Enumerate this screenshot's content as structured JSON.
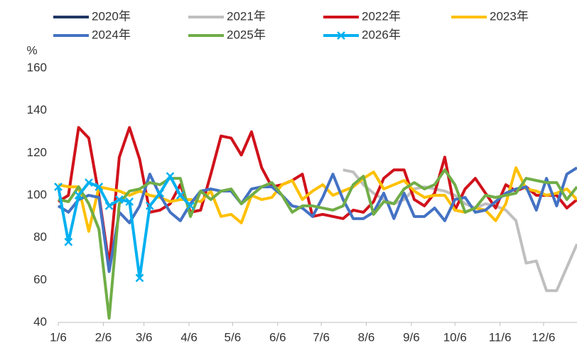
{
  "chart_data": {
    "type": "line",
    "ylabel": "%",
    "x": [
      0,
      7,
      14,
      21,
      28,
      35,
      42,
      49,
      56,
      63,
      70,
      77,
      84,
      91,
      98,
      105,
      112,
      119,
      126,
      133,
      140,
      147,
      154,
      161,
      168,
      175,
      182,
      189,
      196,
      203,
      210,
      217,
      224,
      231,
      238,
      245,
      252,
      259,
      266,
      273,
      280,
      287,
      294,
      301,
      308,
      315,
      322,
      329,
      336,
      343,
      350,
      357
    ],
    "xlim": [
      0,
      357
    ],
    "xticks": [
      {
        "value": 0,
        "label": "1/6"
      },
      {
        "value": 31,
        "label": "2/6"
      },
      {
        "value": 59,
        "label": "3/6"
      },
      {
        "value": 90,
        "label": "4/6"
      },
      {
        "value": 120,
        "label": "5/6"
      },
      {
        "value": 151,
        "label": "6/6"
      },
      {
        "value": 181,
        "label": "7/6"
      },
      {
        "value": 212,
        "label": "8/6"
      },
      {
        "value": 243,
        "label": "9/6"
      },
      {
        "value": 273,
        "label": "10/6"
      },
      {
        "value": 304,
        "label": "11/6"
      },
      {
        "value": 334,
        "label": "12/6"
      }
    ],
    "ylim": [
      40,
      160
    ],
    "yticks": [
      40,
      60,
      80,
      100,
      120,
      140,
      160
    ],
    "grid": false,
    "legend": "top",
    "series": [
      {
        "name": "2020年",
        "color": "#1f3864",
        "values": [
          null,
          null,
          null,
          null,
          null,
          null,
          null,
          null,
          null,
          null,
          null,
          null,
          null,
          null,
          null,
          null,
          null,
          null,
          null,
          null,
          null,
          null,
          null,
          null,
          null,
          null,
          null,
          null,
          null,
          null,
          null,
          null,
          null,
          null,
          null,
          null,
          null,
          null,
          null,
          null,
          null,
          null,
          null,
          null,
          null,
          null,
          null,
          null,
          null,
          null,
          null,
          null
        ]
      },
      {
        "name": "2021年",
        "color": "#bfbfbf",
        "values": [
          null,
          null,
          null,
          null,
          null,
          null,
          null,
          null,
          null,
          null,
          null,
          null,
          null,
          null,
          null,
          null,
          null,
          null,
          null,
          null,
          null,
          null,
          null,
          null,
          null,
          null,
          null,
          null,
          112,
          111,
          105,
          101,
          98,
          96,
          98,
          103,
          104,
          103,
          102,
          100,
          96,
          94,
          96,
          95,
          93,
          88,
          68,
          69,
          55,
          55,
          66,
          77
        ]
      },
      {
        "name": "2022年",
        "color": "#d0121b",
        "values": [
          97,
          100,
          132,
          127,
          100,
          67,
          118,
          132,
          117,
          92,
          93,
          96,
          105,
          92,
          93,
          110,
          128,
          127,
          119,
          130,
          113,
          104,
          105,
          107,
          110,
          90,
          91,
          90,
          89,
          93,
          92,
          97,
          108,
          112,
          112,
          98,
          95,
          101,
          118,
          93,
          103,
          108,
          101,
          94,
          105,
          102,
          104,
          100,
          100,
          100,
          94,
          98
        ]
      },
      {
        "name": "2023年",
        "color": "#ffc000",
        "values": [
          105,
          104,
          104,
          83,
          104,
          103,
          102,
          100,
          102,
          100,
          99,
          97,
          98,
          98,
          97,
          102,
          90,
          91,
          87,
          100,
          98,
          99,
          105,
          107,
          98,
          102,
          105,
          100,
          102,
          104,
          108,
          111,
          103,
          105,
          107,
          102,
          99,
          100,
          100,
          93,
          92,
          94,
          93,
          88,
          96,
          113,
          103,
          102,
          100,
          101,
          103,
          98
        ]
      },
      {
        "name": "2024年",
        "color": "#4472c4",
        "values": [
          95,
          92,
          98,
          100,
          99,
          64,
          92,
          87,
          95,
          110,
          100,
          92,
          88,
          96,
          102,
          103,
          102,
          102,
          96,
          103,
          104,
          104,
          100,
          95,
          94,
          90,
          99,
          110,
          98,
          89,
          89,
          92,
          101,
          89,
          101,
          90,
          90,
          94,
          88,
          98,
          99,
          92,
          93,
          97,
          101,
          103,
          104,
          93,
          108,
          95,
          110,
          113
        ]
      },
      {
        "name": "2025年",
        "color": "#70ad47",
        "values": [
          98,
          97,
          104,
          96,
          84,
          42,
          96,
          102,
          103,
          106,
          105,
          108,
          108,
          90,
          102,
          98,
          102,
          103,
          96,
          100,
          104,
          106,
          100,
          92,
          95,
          95,
          94,
          93,
          95,
          105,
          109,
          91,
          97,
          96,
          103,
          106,
          103,
          105,
          112,
          105,
          92,
          94,
          100,
          99,
          100,
          101,
          108,
          107,
          106,
          106,
          98,
          104
        ]
      },
      {
        "name": "2026年",
        "color": "#00b0f0",
        "marker": "x",
        "values": [
          104,
          78,
          100,
          106,
          104,
          95,
          98,
          97,
          61,
          95,
          101,
          109,
          100,
          95,
          null,
          null,
          null,
          null,
          null,
          null,
          null,
          null,
          null,
          null,
          null,
          null,
          null,
          null,
          null,
          null,
          null,
          null,
          null,
          null,
          null,
          null,
          null,
          null,
          null,
          null,
          null,
          null,
          null,
          null,
          null,
          null,
          null,
          null,
          null,
          null,
          null,
          null
        ]
      }
    ]
  }
}
